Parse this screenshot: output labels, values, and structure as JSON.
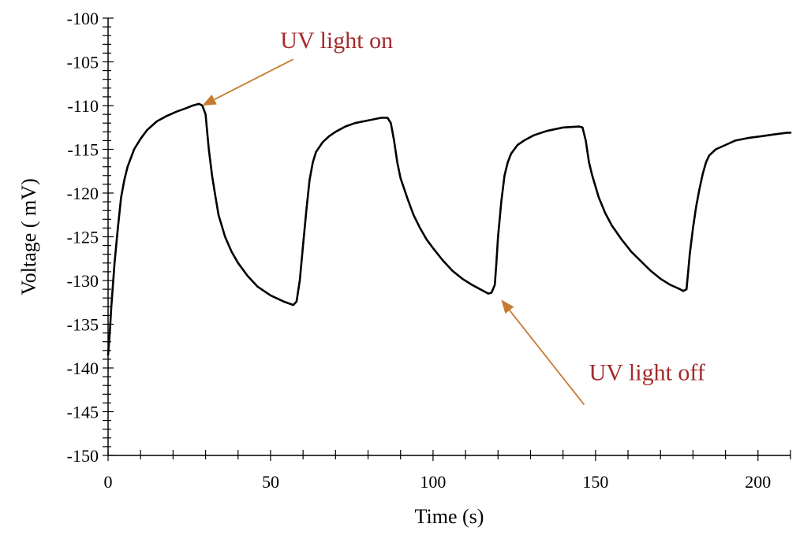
{
  "chart_data": {
    "type": "line",
    "xlabel": "Time (s)",
    "ylabel": "Voltage ( mV)",
    "xlim": [
      0,
      210
    ],
    "ylim": [
      -150,
      -100
    ],
    "x_ticks": [
      0,
      50,
      100,
      150,
      200
    ],
    "y_ticks": [
      -100,
      -105,
      -110,
      -115,
      -120,
      -125,
      -130,
      -135,
      -140,
      -145,
      -150
    ],
    "grid": false,
    "line_color": "#000000",
    "series": [
      {
        "points": [
          [
            0,
            -138.5
          ],
          [
            0.5,
            -136
          ],
          [
            1,
            -133
          ],
          [
            2,
            -128
          ],
          [
            3,
            -124
          ],
          [
            4,
            -120.5
          ],
          [
            5,
            -118.5
          ],
          [
            6,
            -117
          ],
          [
            8,
            -115
          ],
          [
            10,
            -113.8
          ],
          [
            12,
            -112.8
          ],
          [
            15,
            -111.8
          ],
          [
            18,
            -111.2
          ],
          [
            21,
            -110.7
          ],
          [
            24,
            -110.3
          ],
          [
            26,
            -110
          ],
          [
            28,
            -109.8
          ],
          [
            29,
            -110
          ],
          [
            30,
            -111
          ],
          [
            30.5,
            -113
          ],
          [
            31,
            -115
          ],
          [
            32,
            -118
          ],
          [
            33,
            -120.3
          ],
          [
            34,
            -122.5
          ],
          [
            36,
            -125
          ],
          [
            38,
            -126.7
          ],
          [
            40,
            -128
          ],
          [
            43,
            -129.5
          ],
          [
            46,
            -130.7
          ],
          [
            50,
            -131.7
          ],
          [
            54,
            -132.4
          ],
          [
            57,
            -132.8
          ],
          [
            58,
            -132.4
          ],
          [
            59,
            -130
          ],
          [
            60,
            -126
          ],
          [
            61,
            -122
          ],
          [
            62,
            -118.5
          ],
          [
            63,
            -116.5
          ],
          [
            64,
            -115.3
          ],
          [
            66,
            -114.2
          ],
          [
            68,
            -113.5
          ],
          [
            70,
            -113
          ],
          [
            73,
            -112.4
          ],
          [
            76,
            -112
          ],
          [
            80,
            -111.7
          ],
          [
            84,
            -111.4
          ],
          [
            86,
            -111.4
          ],
          [
            87,
            -112
          ],
          [
            88,
            -114
          ],
          [
            89,
            -116.5
          ],
          [
            90,
            -118.3
          ],
          [
            92,
            -120.5
          ],
          [
            94,
            -122.5
          ],
          [
            96,
            -124
          ],
          [
            98,
            -125.3
          ],
          [
            100,
            -126.3
          ],
          [
            103,
            -127.7
          ],
          [
            106,
            -128.9
          ],
          [
            109,
            -129.8
          ],
          [
            112,
            -130.5
          ],
          [
            115,
            -131.1
          ],
          [
            117,
            -131.5
          ],
          [
            118,
            -131.4
          ],
          [
            119,
            -130.5
          ],
          [
            119.5,
            -128
          ],
          [
            120,
            -125
          ],
          [
            121,
            -121
          ],
          [
            122,
            -118
          ],
          [
            123,
            -116.5
          ],
          [
            124,
            -115.5
          ],
          [
            126,
            -114.5
          ],
          [
            128,
            -114
          ],
          [
            131,
            -113.4
          ],
          [
            135,
            -112.9
          ],
          [
            140,
            -112.5
          ],
          [
            145,
            -112.4
          ],
          [
            146,
            -112.5
          ],
          [
            147,
            -114
          ],
          [
            148,
            -116.5
          ],
          [
            149,
            -118
          ],
          [
            151,
            -120.5
          ],
          [
            153,
            -122.3
          ],
          [
            155,
            -123.7
          ],
          [
            158,
            -125.3
          ],
          [
            161,
            -126.7
          ],
          [
            164,
            -127.8
          ],
          [
            167,
            -128.9
          ],
          [
            170,
            -129.8
          ],
          [
            173,
            -130.5
          ],
          [
            176,
            -131
          ],
          [
            177,
            -131.2
          ],
          [
            178,
            -131
          ],
          [
            178.5,
            -129
          ],
          [
            179,
            -127
          ],
          [
            180,
            -124
          ],
          [
            181,
            -121.5
          ],
          [
            182,
            -119.5
          ],
          [
            183,
            -117.8
          ],
          [
            184,
            -116.5
          ],
          [
            185,
            -115.7
          ],
          [
            187,
            -115
          ],
          [
            190,
            -114.5
          ],
          [
            193,
            -114
          ],
          [
            197,
            -113.7
          ],
          [
            201,
            -113.5
          ],
          [
            205,
            -113.3
          ],
          [
            209,
            -113.1
          ],
          [
            210,
            -113.1
          ]
        ]
      }
    ],
    "annotations": [
      {
        "text": "UV light on",
        "color": "#a52a2a",
        "arrow_color": "#c77b30",
        "target": [
          29,
          -110
        ],
        "from": [
          57,
          -104.7
        ],
        "label_at": [
          53,
          -102.5
        ],
        "anchor": "start"
      },
      {
        "text": "UV light off",
        "color": "#a52a2a",
        "arrow_color": "#c77b30",
        "target": [
          121,
          -132.2
        ],
        "from": [
          146.5,
          -144.2
        ],
        "label_at": [
          148,
          -140.5
        ],
        "anchor": "start"
      }
    ]
  }
}
